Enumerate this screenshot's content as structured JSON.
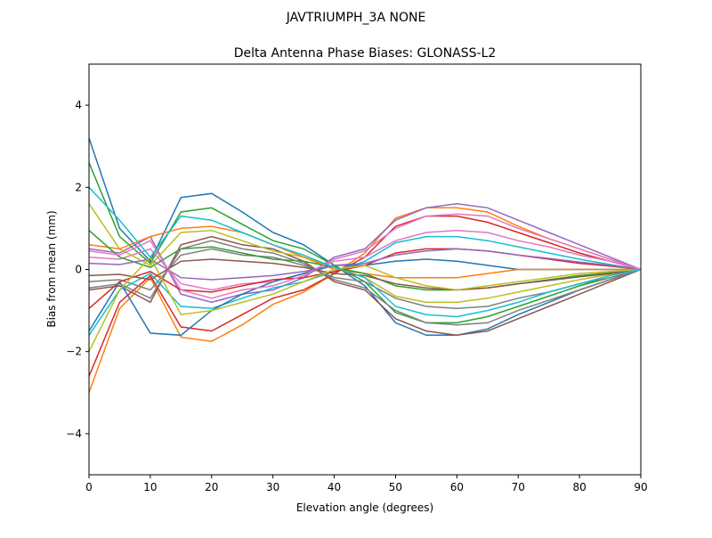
{
  "chart_data": {
    "type": "line",
    "suptitle": "JAVTRIUMPH_3A   NONE",
    "title": "Delta Antenna Phase Biases: GLONASS-L2",
    "xlabel": "Elevation angle (degrees)",
    "ylabel": "Bias from mean (mm)",
    "xlim": [
      0,
      90
    ],
    "ylim": [
      -5,
      5
    ],
    "xticks": [
      0,
      10,
      20,
      30,
      40,
      50,
      60,
      70,
      80,
      90
    ],
    "yticks": [
      -4,
      -2,
      0,
      2,
      4
    ],
    "grid": false,
    "legend": "none",
    "colors": [
      "#1f77b4",
      "#ff7f0e",
      "#2ca02c",
      "#d62728",
      "#9467bd",
      "#8c564b",
      "#e377c2",
      "#7f7f7f",
      "#bcbd22",
      "#17becf"
    ],
    "x": [
      0,
      5,
      10,
      15,
      20,
      25,
      30,
      35,
      40,
      45,
      50,
      55,
      60,
      65,
      70,
      75,
      80,
      85,
      90
    ],
    "series": [
      {
        "values": [
          3.2,
          1.0,
          0.2,
          1.75,
          1.85,
          1.4,
          0.9,
          0.6,
          0.1,
          -0.4,
          -1.3,
          -1.6,
          -1.6,
          -1.45,
          -1.1,
          -0.8,
          -0.5,
          -0.25,
          0
        ]
      },
      {
        "values": [
          -3.0,
          -0.95,
          -0.2,
          -1.65,
          -1.75,
          -1.35,
          -0.85,
          -0.55,
          -0.1,
          0.4,
          1.25,
          1.5,
          1.5,
          1.4,
          1.05,
          0.75,
          0.5,
          0.25,
          0
        ]
      },
      {
        "values": [
          2.6,
          0.8,
          0.15,
          1.4,
          1.5,
          1.1,
          0.7,
          0.5,
          0.1,
          -0.3,
          -1.05,
          -1.3,
          -1.3,
          -1.15,
          -0.9,
          -0.65,
          -0.4,
          -0.2,
          0
        ]
      },
      {
        "values": [
          -2.6,
          -0.8,
          -0.15,
          -1.4,
          -1.5,
          -1.1,
          -0.7,
          -0.5,
          -0.1,
          0.3,
          1.05,
          1.3,
          1.3,
          1.15,
          0.9,
          0.65,
          0.4,
          0.2,
          0
        ]
      },
      {
        "values": [
          0.5,
          0.4,
          0.8,
          -0.6,
          -0.8,
          -0.6,
          -0.5,
          -0.2,
          0.3,
          0.5,
          1.2,
          1.5,
          1.6,
          1.5,
          1.2,
          0.9,
          0.6,
          0.3,
          0
        ]
      },
      {
        "values": [
          -0.5,
          -0.4,
          -0.8,
          0.6,
          0.8,
          0.6,
          0.5,
          0.2,
          -0.3,
          -0.5,
          -1.2,
          -1.5,
          -1.6,
          -1.5,
          -1.2,
          -0.9,
          -0.6,
          -0.3,
          0
        ]
      },
      {
        "values": [
          0.3,
          0.25,
          0.5,
          -0.35,
          -0.5,
          -0.35,
          -0.3,
          -0.1,
          0.2,
          0.3,
          0.7,
          0.9,
          0.95,
          0.9,
          0.7,
          0.55,
          0.35,
          0.2,
          0
        ]
      },
      {
        "values": [
          -0.3,
          -0.25,
          -0.5,
          0.35,
          0.5,
          0.35,
          0.3,
          0.1,
          -0.2,
          -0.3,
          -0.7,
          -0.9,
          -0.95,
          -0.9,
          -0.7,
          -0.55,
          -0.35,
          -0.2,
          0
        ]
      },
      {
        "values": [
          1.6,
          0.5,
          0.1,
          0.9,
          0.95,
          0.7,
          0.45,
          0.3,
          0.05,
          -0.2,
          -0.65,
          -0.8,
          -0.8,
          -0.7,
          -0.55,
          -0.4,
          -0.25,
          -0.12,
          0
        ]
      },
      {
        "values": [
          -1.6,
          -0.5,
          -0.1,
          -0.9,
          -0.95,
          -0.7,
          -0.45,
          -0.3,
          -0.05,
          0.2,
          0.65,
          0.8,
          0.8,
          0.7,
          0.55,
          0.4,
          0.25,
          0.12,
          0
        ]
      },
      {
        "values": [
          -1.5,
          -0.3,
          -1.55,
          -1.6,
          -1.0,
          -0.6,
          -0.3,
          -0.1,
          0.1,
          0.1,
          0.2,
          0.25,
          0.2,
          0.1,
          0,
          0,
          0,
          0,
          0
        ]
      },
      {
        "values": [
          0.6,
          0.5,
          0.8,
          1.0,
          1.05,
          0.9,
          0.6,
          0.3,
          0,
          -0.1,
          -0.2,
          -0.2,
          -0.2,
          -0.1,
          0,
          0,
          0,
          0,
          0
        ]
      },
      {
        "values": [
          0.95,
          0.3,
          0.05,
          0.5,
          0.55,
          0.4,
          0.25,
          0.2,
          0.05,
          -0.1,
          -0.4,
          -0.5,
          -0.5,
          -0.45,
          -0.35,
          -0.25,
          -0.15,
          -0.08,
          0
        ]
      },
      {
        "values": [
          -0.95,
          -0.3,
          -0.05,
          -0.5,
          -0.55,
          -0.4,
          -0.25,
          -0.2,
          -0.05,
          0.1,
          0.4,
          0.5,
          0.5,
          0.45,
          0.35,
          0.25,
          0.15,
          0.08,
          0
        ]
      },
      {
        "values": [
          0.15,
          0.12,
          0.25,
          -0.2,
          -0.25,
          -0.2,
          -0.15,
          -0.05,
          0.1,
          0.15,
          0.35,
          0.45,
          0.5,
          0.45,
          0.35,
          0.27,
          0.18,
          0.1,
          0
        ]
      },
      {
        "values": [
          -0.15,
          -0.12,
          -0.25,
          0.2,
          0.25,
          0.2,
          0.15,
          0.05,
          -0.1,
          -0.15,
          -0.35,
          -0.45,
          -0.5,
          -0.45,
          -0.35,
          -0.27,
          -0.18,
          -0.1,
          0
        ]
      },
      {
        "values": [
          0.45,
          0.35,
          0.7,
          -0.5,
          -0.7,
          -0.5,
          -0.4,
          -0.15,
          0.25,
          0.45,
          1.0,
          1.3,
          1.35,
          1.3,
          1.0,
          0.75,
          0.5,
          0.25,
          0
        ]
      },
      {
        "values": [
          -0.45,
          -0.35,
          -0.7,
          0.5,
          0.7,
          0.5,
          0.4,
          0.15,
          -0.25,
          -0.45,
          -1.0,
          -1.3,
          -1.35,
          -1.3,
          -1.0,
          -0.75,
          -0.5,
          -0.25,
          0
        ]
      },
      {
        "values": [
          -2.0,
          -0.5,
          0.3,
          -1.1,
          -1.0,
          -0.8,
          -0.6,
          -0.3,
          0,
          0.1,
          -0.2,
          -0.4,
          -0.5,
          -0.4,
          -0.3,
          -0.2,
          -0.1,
          -0.05,
          0
        ]
      },
      {
        "values": [
          2.0,
          1.2,
          0.3,
          1.3,
          1.2,
          0.9,
          0.6,
          0.35,
          0.05,
          -0.2,
          -0.9,
          -1.1,
          -1.15,
          -1.0,
          -0.8,
          -0.55,
          -0.35,
          -0.15,
          0
        ]
      }
    ]
  }
}
